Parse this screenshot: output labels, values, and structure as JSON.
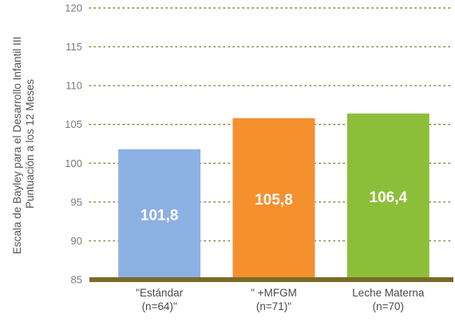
{
  "chart_data": {
    "type": "bar",
    "ylabel_lines": [
      "Escala de Bayley para el Desarrollo Infantil III",
      "Puntuación a los 12 Meses"
    ],
    "categories": [
      {
        "line1": "\"Estándar",
        "line2": "(n=64)\""
      },
      {
        "line1": "\" +MFGM",
        "line2": "(n=71)\""
      },
      {
        "line1": "Leche Materna",
        "line2": "(n=70)"
      }
    ],
    "values": [
      101.8,
      105.8,
      106.4
    ],
    "data_labels": [
      "101,8",
      "105,8",
      "106,4"
    ],
    "colors": [
      "#8db0e3",
      "#f5902f",
      "#8dbe3a"
    ],
    "baseline_color": "#7a6a28",
    "grid_color": "#8a7a30",
    "ylim": [
      85,
      120
    ],
    "yticks": [
      85,
      90,
      95,
      100,
      105,
      110,
      115,
      120
    ],
    "grid": "dotted-horizontal",
    "legend": "none"
  }
}
